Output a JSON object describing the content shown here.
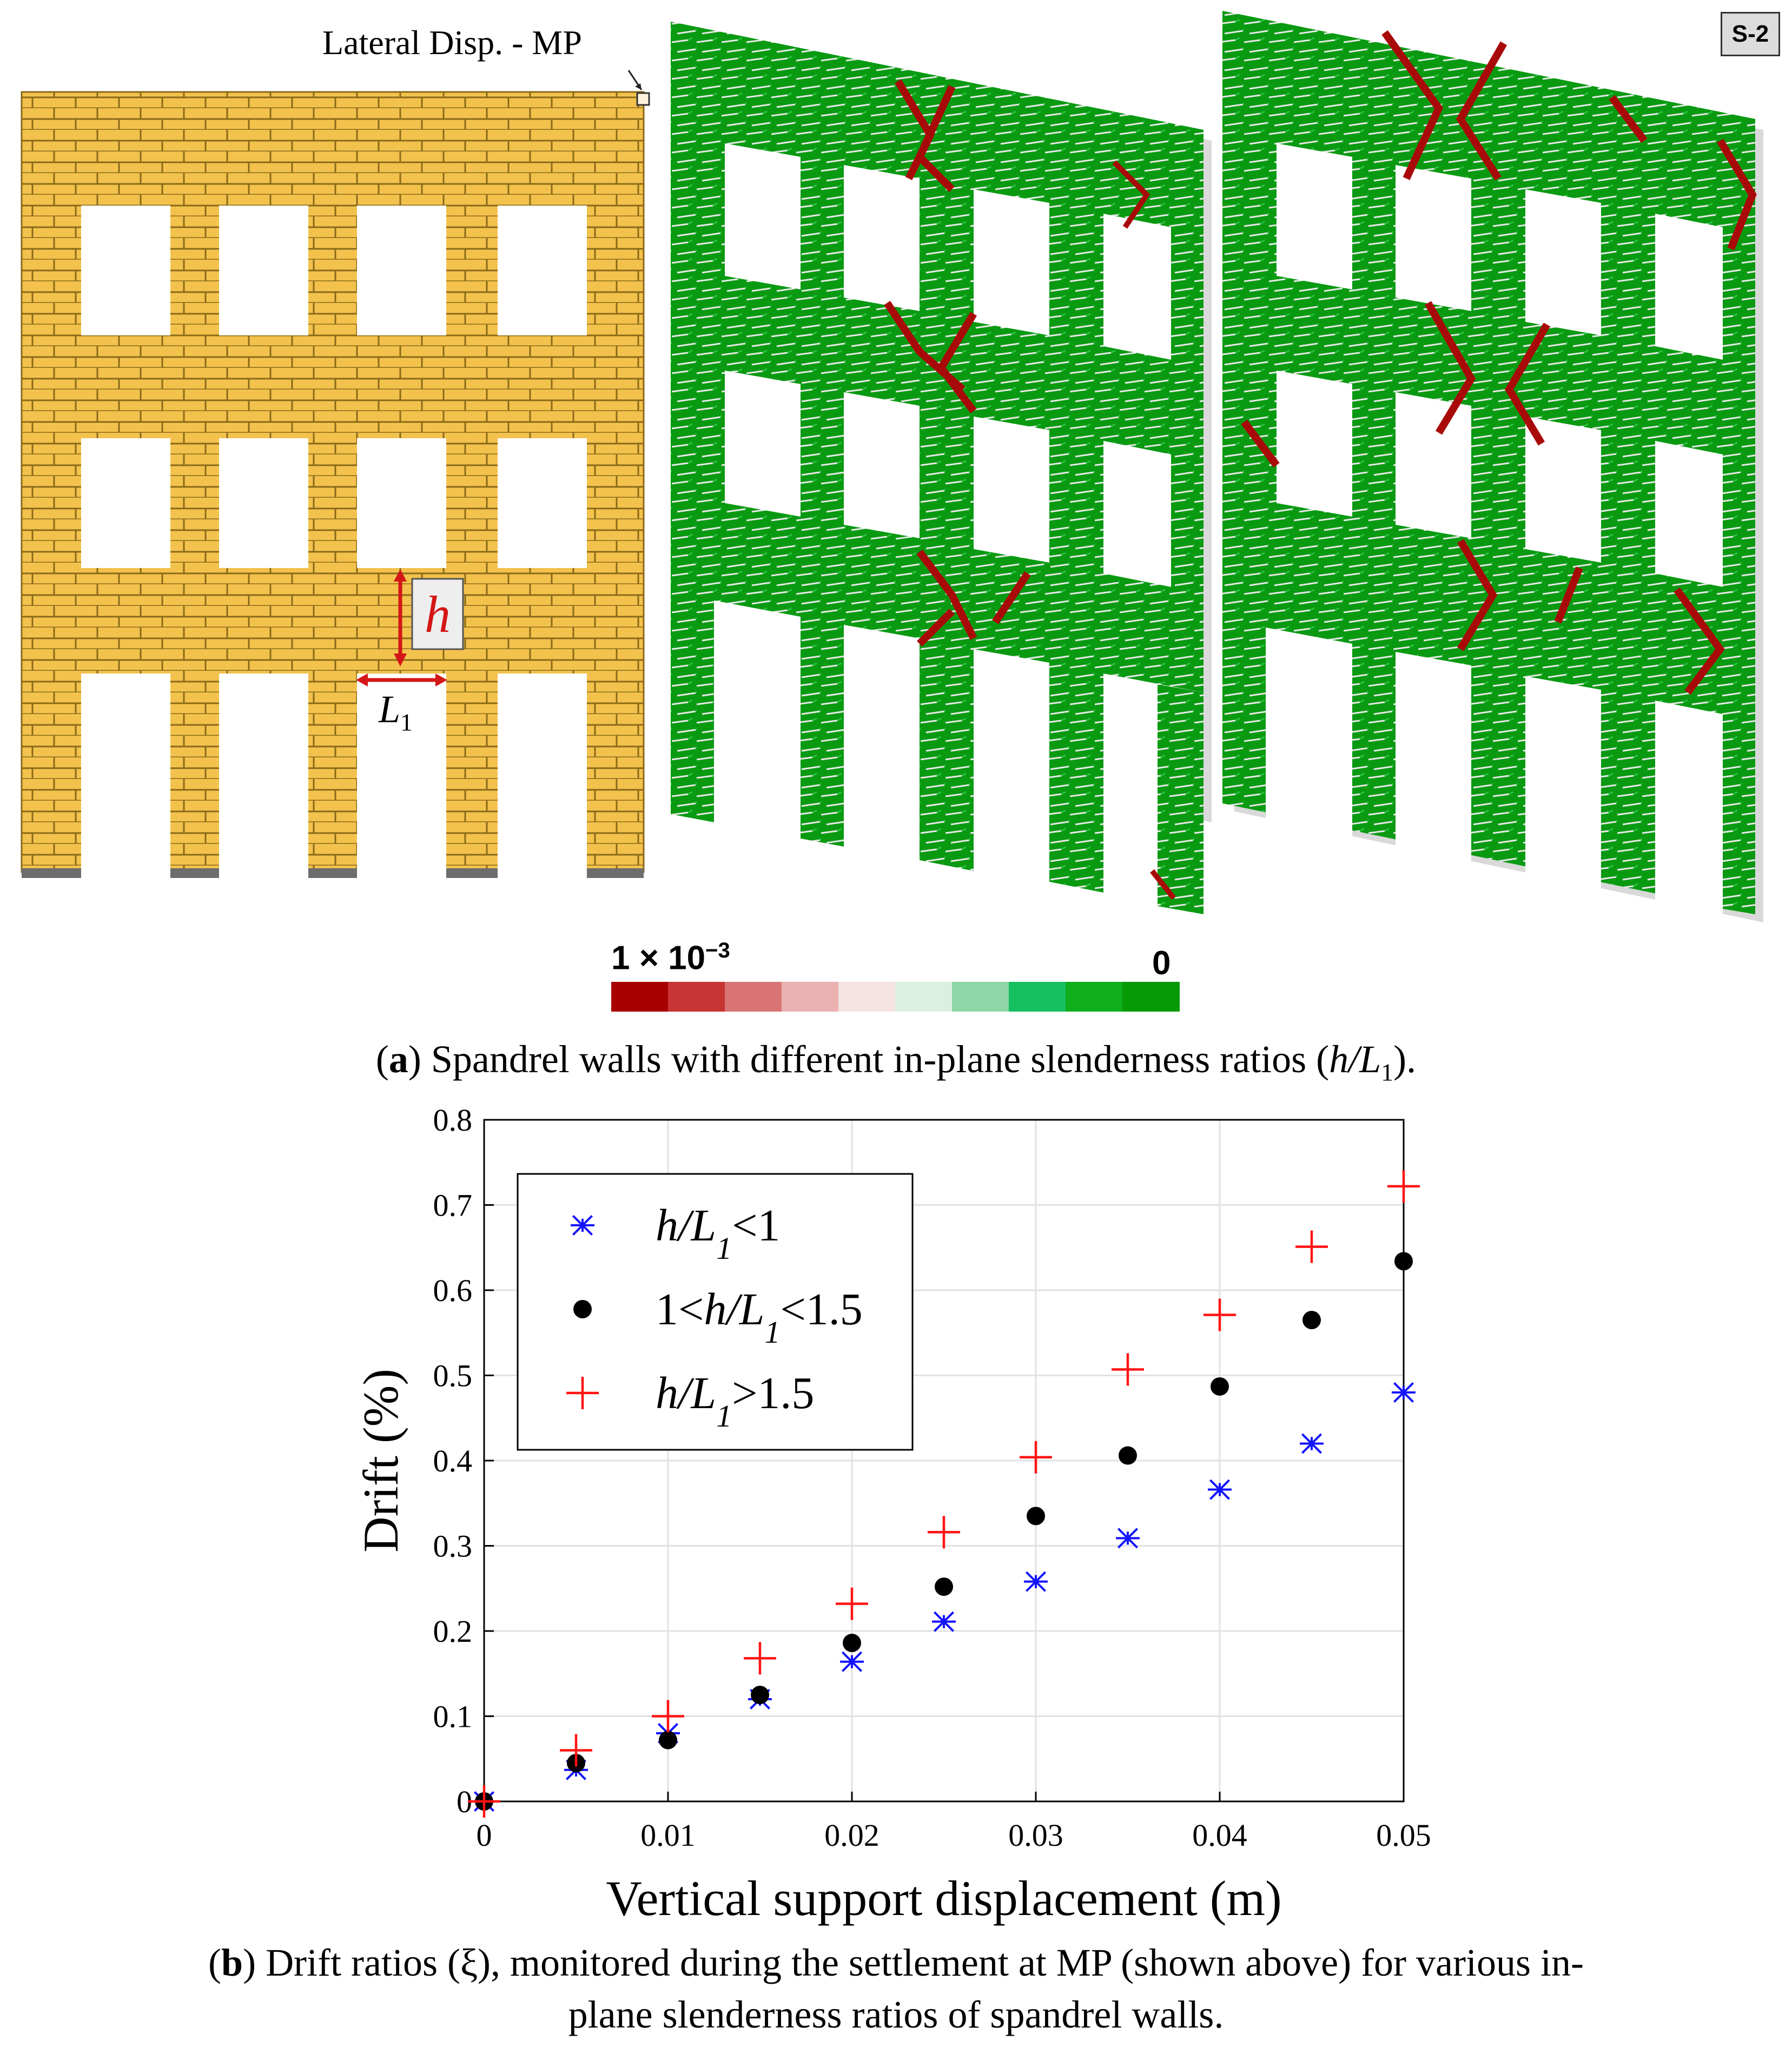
{
  "badge": "S-2",
  "figure_a": {
    "mp_label": "Lateral Disp. - MP",
    "h_label": "h",
    "l1_label": "L",
    "l1_sub": "1",
    "colorbar": {
      "max_label": "1 × 10",
      "max_exp": "−3",
      "min_label": "0",
      "colors": [
        "#a80000",
        "#c83434",
        "#d97474",
        "#ebb0b0",
        "#f6e2e2",
        "#dcf0e2",
        "#8fd5a5",
        "#16c061",
        "#0fae1c",
        "#069a06"
      ]
    },
    "caption_bold": "a",
    "caption_text": " Spandrel walls with different in-plane slenderness ratios (",
    "caption_math": "h/L",
    "caption_sub": "1",
    "caption_end": ")."
  },
  "figure_b": {
    "caption_line1_bold": "b",
    "caption_line1": " Drift ratios (ξ), monitored during the settlement at MP (shown above) for various in-",
    "caption_line2": "plane slenderness ratios of spandrel walls."
  },
  "chart_data": {
    "type": "scatter",
    "xlabel": "Vertical support displacement (m)",
    "ylabel": "Drift (%)",
    "xlim": [
      0,
      0.05
    ],
    "ylim": [
      0,
      0.8
    ],
    "xticks": [
      "0",
      "0.01",
      "0.02",
      "0.03",
      "0.04",
      "0.05"
    ],
    "yticks": [
      "0",
      "0.1",
      "0.2",
      "0.3",
      "0.4",
      "0.5",
      "0.6",
      "0.7",
      "0.8"
    ],
    "grid": true,
    "legend_position": "top-left",
    "x": [
      0,
      0.005,
      0.01,
      0.015,
      0.02,
      0.025,
      0.03,
      0.035,
      0.04,
      0.045,
      0.05
    ],
    "series": [
      {
        "name": "h/L1<1",
        "legend_pre": "h/L",
        "legend_sub": "1",
        "legend_post": "<1",
        "marker": "asterisk",
        "color": "#1414ff",
        "values": [
          0,
          0.037,
          0.08,
          0.12,
          0.164,
          0.211,
          0.258,
          0.309,
          0.366,
          0.42,
          0.48
        ]
      },
      {
        "name": "1<h/L1<1.5",
        "legend_pre": "1<h/L",
        "legend_sub": "1",
        "legend_post": "<1.5",
        "marker": "dot",
        "color": "#000000",
        "values": [
          0,
          0.045,
          0.072,
          0.125,
          0.186,
          0.252,
          0.335,
          0.406,
          0.487,
          0.565,
          0.634
        ]
      },
      {
        "name": "h/L1>1.5",
        "legend_pre": "h/L",
        "legend_sub": "1",
        "legend_post": ">1.5",
        "marker": "plus",
        "color": "#ff1414",
        "values": [
          0,
          0.06,
          0.1,
          0.168,
          0.232,
          0.316,
          0.404,
          0.507,
          0.571,
          0.651,
          0.722
        ]
      }
    ]
  }
}
